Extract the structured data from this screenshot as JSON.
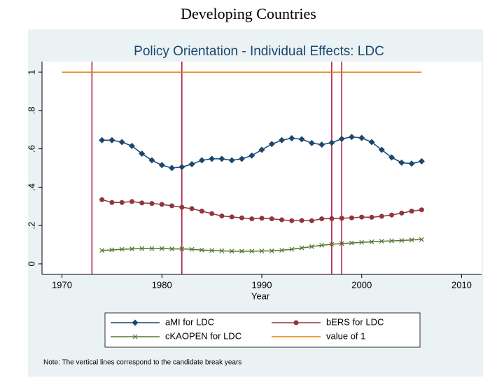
{
  "page_title": "Developing Countries",
  "chart_data": {
    "type": "line",
    "title": "Policy Orientation - Individual Effects: LDC",
    "x_label": "Year",
    "note": "Note: The vertical lines correspond to the candidate break years",
    "xlim": [
      1968,
      2012
    ],
    "xticks": [
      1970,
      1980,
      1990,
      2000,
      2010
    ],
    "ylim": [
      -0.055,
      1.055
    ],
    "yticks": [
      0,
      {
        "value": 0.2,
        "label": ".2"
      },
      {
        "value": 0.4,
        "label": ".4"
      },
      {
        "value": 0.6,
        "label": ".6"
      },
      {
        "value": 0.8,
        "label": ".8"
      },
      1
    ],
    "break_years": [
      1973,
      1982,
      1997,
      1998
    ],
    "break_color": "#b01040",
    "series": [
      {
        "name": "aMI for LDC",
        "color": "#1a476f",
        "marker": "diamond",
        "x": [
          1974,
          1975,
          1976,
          1977,
          1978,
          1979,
          1980,
          1981,
          1982,
          1983,
          1984,
          1985,
          1986,
          1987,
          1988,
          1989,
          1990,
          1991,
          1992,
          1993,
          1994,
          1995,
          1996,
          1997,
          1998,
          1999,
          2000,
          2001,
          2002,
          2003,
          2004,
          2005,
          2006
        ],
        "values": [
          0.645,
          0.645,
          0.635,
          0.615,
          0.575,
          0.54,
          0.515,
          0.5,
          0.505,
          0.52,
          0.54,
          0.548,
          0.548,
          0.54,
          0.548,
          0.565,
          0.595,
          0.625,
          0.645,
          0.655,
          0.65,
          0.63,
          0.622,
          0.632,
          0.652,
          0.662,
          0.657,
          0.635,
          0.595,
          0.555,
          0.528,
          0.523,
          0.535
        ]
      },
      {
        "name": "bERS for LDC",
        "color": "#90353b",
        "marker": "circle",
        "x": [
          1974,
          1975,
          1976,
          1977,
          1978,
          1979,
          1980,
          1981,
          1982,
          1983,
          1984,
          1985,
          1986,
          1987,
          1988,
          1989,
          1990,
          1991,
          1992,
          1993,
          1994,
          1995,
          1996,
          1997,
          1998,
          1999,
          2000,
          2001,
          2002,
          2003,
          2004,
          2005,
          2006
        ],
        "values": [
          0.335,
          0.32,
          0.32,
          0.325,
          0.318,
          0.315,
          0.31,
          0.303,
          0.295,
          0.288,
          0.275,
          0.262,
          0.25,
          0.245,
          0.24,
          0.235,
          0.238,
          0.235,
          0.23,
          0.225,
          0.226,
          0.225,
          0.235,
          0.236,
          0.238,
          0.24,
          0.244,
          0.243,
          0.248,
          0.255,
          0.265,
          0.275,
          0.282
        ]
      },
      {
        "name": "cKAOPEN for LDC",
        "color": "#55752f",
        "marker": "x",
        "x": [
          1974,
          1975,
          1976,
          1977,
          1978,
          1979,
          1980,
          1981,
          1982,
          1983,
          1984,
          1985,
          1986,
          1987,
          1988,
          1989,
          1990,
          1991,
          1992,
          1993,
          1994,
          1995,
          1996,
          1997,
          1998,
          1999,
          2000,
          2001,
          2002,
          2003,
          2004,
          2005,
          2006
        ],
        "values": [
          0.07,
          0.073,
          0.076,
          0.078,
          0.08,
          0.08,
          0.08,
          0.078,
          0.078,
          0.076,
          0.072,
          0.07,
          0.068,
          0.066,
          0.066,
          0.066,
          0.067,
          0.068,
          0.071,
          0.076,
          0.083,
          0.09,
          0.097,
          0.102,
          0.106,
          0.109,
          0.112,
          0.115,
          0.118,
          0.12,
          0.122,
          0.125,
          0.127
        ]
      },
      {
        "name": "value of 1",
        "color": "#e37e00",
        "marker": "none",
        "x": [
          1970,
          2006
        ],
        "values": [
          1,
          1
        ]
      }
    ]
  }
}
